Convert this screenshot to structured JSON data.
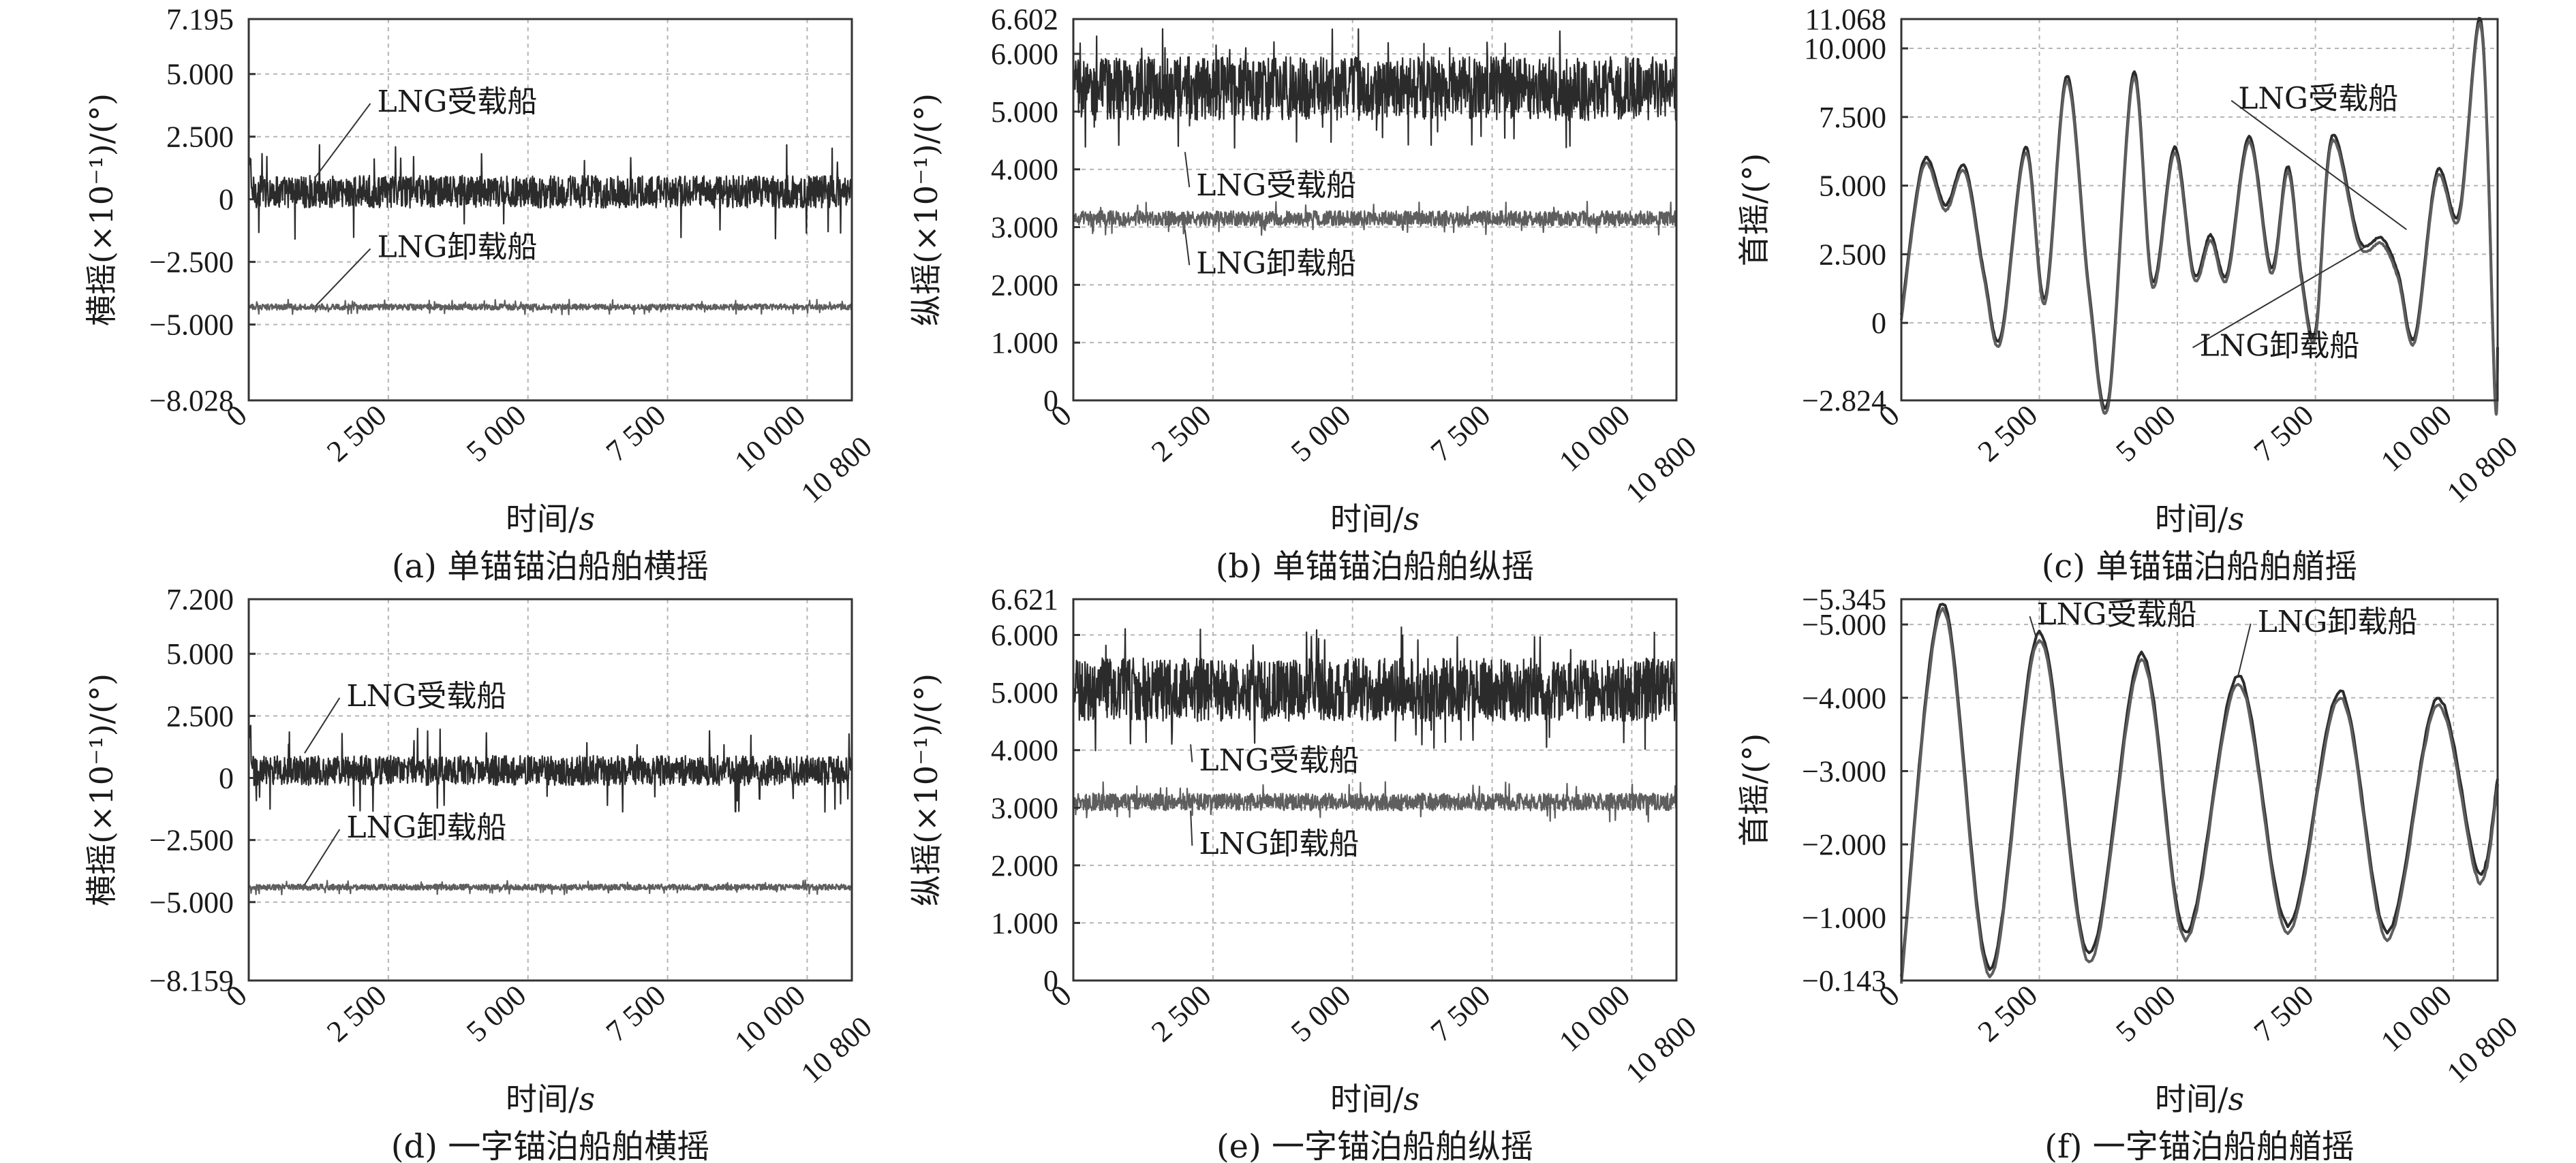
{
  "colors": {
    "upper_series": "#2b2b2b",
    "lower_series": "#5e5e5e",
    "grid": "#b5b5b5",
    "frame": "#333333"
  },
  "chart_data": [
    {
      "id": "a",
      "type": "line",
      "caption": "(a) 单锚锚泊船舶横摇",
      "xlabel": "时间/",
      "xlabel_unit": "s",
      "ylabel": "横摇(×10⁻¹)/(°)",
      "xlim": [
        0,
        10800
      ],
      "ylim": [
        -8.028,
        7.195
      ],
      "grid": true,
      "xticks": [
        0,
        2500,
        5000,
        7500,
        10000,
        10800
      ],
      "xtick_labels": [
        "0",
        "2 500",
        "5 000",
        "7 500",
        "10 000",
        "10 800"
      ],
      "yticks": [
        -8.028,
        -5.0,
        -2.5,
        0,
        2.5,
        5.0,
        7.195
      ],
      "ytick_labels": [
        "-8.028",
        "-5.000",
        "-2.500",
        "0",
        "2.500",
        "5.000",
        "7.195"
      ],
      "series": [
        {
          "name": "LNG受载船",
          "kind": "noise",
          "mean": 0.3,
          "amp": 0.65,
          "spike": 1.9,
          "start": 1.6
        },
        {
          "name": "LNG卸载船",
          "kind": "noise",
          "mean": -4.3,
          "amp": 0.12,
          "spike": 0.3,
          "start": -4.3
        }
      ],
      "annotations": [
        {
          "text": "LNG受载船",
          "x": 2300,
          "y": 3.5,
          "tx": 1200,
          "ty": 0.9
        },
        {
          "text": "LNG卸载船",
          "x": 2300,
          "y": -2.3,
          "tx": 1200,
          "ty": -4.25
        }
      ]
    },
    {
      "id": "b",
      "type": "line",
      "caption": "(b) 单锚锚泊船舶纵摇",
      "xlabel": "时间/",
      "xlabel_unit": "s",
      "ylabel": "纵摇(×10⁻¹)/(°)",
      "xlim": [
        0,
        10800
      ],
      "ylim": [
        0,
        6.602
      ],
      "grid": true,
      "xticks": [
        0,
        2500,
        5000,
        7500,
        10000,
        10800
      ],
      "xtick_labels": [
        "0",
        "2 500",
        "5 000",
        "7 500",
        "10 000",
        "10 800"
      ],
      "yticks": [
        0,
        1.0,
        2.0,
        3.0,
        4.0,
        5.0,
        6.0,
        6.602
      ],
      "ytick_labels": [
        "0",
        "1.000",
        "2.000",
        "3.000",
        "4.000",
        "5.000",
        "6.000",
        "6.602"
      ],
      "series": [
        {
          "name": "LNG受载船",
          "kind": "noise",
          "mean": 5.4,
          "amp": 0.55,
          "spike": 1.05,
          "start": 5.4
        },
        {
          "name": "LNG卸载船",
          "kind": "noise",
          "mean": 3.15,
          "amp": 0.13,
          "spike": 0.3,
          "start": 3.15
        }
      ],
      "annotations": [
        {
          "text": "LNG受载船",
          "x": 2200,
          "y": 3.55,
          "tx": 2000,
          "ty": 4.3
        },
        {
          "text": "LNG卸载船",
          "x": 2200,
          "y": 2.2,
          "tx": 2000,
          "ty": 2.95
        }
      ]
    },
    {
      "id": "c",
      "type": "line",
      "caption": "(c) 单锚锚泊船舶艏摇",
      "xlabel": "时间/",
      "xlabel_unit": "s",
      "ylabel": "首摇/(°)",
      "xlim": [
        0,
        10800
      ],
      "ylim": [
        -2.824,
        11.068
      ],
      "grid": true,
      "xticks": [
        0,
        2500,
        5000,
        7500,
        10000,
        10800
      ],
      "xtick_labels": [
        "0",
        "2 500",
        "5 000",
        "7 500",
        "10 000",
        "10 800"
      ],
      "yticks": [
        -2.824,
        0,
        2.5,
        5.0,
        7.5,
        10.0,
        11.068
      ],
      "ytick_labels": [
        "-2.824",
        "0",
        "2.500",
        "5.000",
        "7.500",
        "10.000",
        "11.068"
      ],
      "series": [
        {
          "name": "LNG受载船",
          "kind": "smooth",
          "offset": 0.0,
          "x": [
            0,
            400,
            800,
            1150,
            1500,
            1800,
            2250,
            2600,
            3000,
            3400,
            3750,
            4200,
            4550,
            4950,
            5300,
            5600,
            5900,
            6300,
            6700,
            7000,
            7250,
            7500,
            7800,
            8300,
            8700,
            9000,
            9300,
            9700,
            10100,
            10500,
            10750,
            10800
          ],
          "y": [
            0.3,
            5.9,
            4.3,
            5.7,
            1.8,
            -0.5,
            6.4,
            0.9,
            9.0,
            1.2,
            -2.8,
            9.1,
            1.5,
            6.4,
            1.8,
            3.2,
            1.8,
            6.8,
            2.0,
            5.7,
            1.7,
            -0.3,
            6.8,
            3.0,
            3.1,
            1.8,
            -0.5,
            5.5,
            4.0,
            11.0,
            -2.5,
            -0.9
          ]
        },
        {
          "name": "LNG卸载船",
          "kind": "smooth",
          "offset": -0.2,
          "x": [
            0,
            400,
            800,
            1150,
            1500,
            1800,
            2250,
            2600,
            3000,
            3400,
            3750,
            4200,
            4550,
            4950,
            5300,
            5600,
            5900,
            6300,
            6700,
            7000,
            7250,
            7500,
            7800,
            8300,
            8700,
            9000,
            9300,
            9700,
            10100,
            10500,
            10750,
            10800
          ],
          "y": [
            0.3,
            5.9,
            4.3,
            5.7,
            1.8,
            -0.5,
            6.4,
            0.9,
            9.0,
            1.2,
            -2.8,
            9.1,
            1.5,
            6.4,
            1.8,
            3.2,
            1.8,
            6.8,
            2.0,
            5.7,
            1.7,
            -0.3,
            6.8,
            3.0,
            3.1,
            1.8,
            -0.5,
            5.5,
            4.0,
            11.0,
            -2.5,
            -0.9
          ]
        }
      ],
      "annotations": [
        {
          "text": "LNG受载船",
          "x": 6100,
          "y": 7.8,
          "tx": 9150,
          "ty": 3.4
        },
        {
          "text": "LNG卸载船",
          "x": 5400,
          "y": -1.2,
          "tx": 8600,
          "ty": 3.0
        }
      ]
    },
    {
      "id": "d",
      "type": "line",
      "caption": "(d) 一字锚泊船舶横摇",
      "xlabel": "时间/",
      "xlabel_unit": "s",
      "ylabel": "横摇(×10⁻¹)/(°)",
      "xlim": [
        0,
        10800
      ],
      "ylim": [
        -8.159,
        7.2
      ],
      "grid": true,
      "xticks": [
        0,
        2500,
        5000,
        7500,
        10000,
        10800
      ],
      "xtick_labels": [
        "0",
        "2 500",
        "5 000",
        "7 500",
        "10 000",
        "10 800"
      ],
      "yticks": [
        -8.159,
        -5.0,
        -2.5,
        0,
        2.5,
        5.0,
        7.2
      ],
      "ytick_labels": [
        "-8.159",
        "-5.000",
        "-2.500",
        "0",
        "2.500",
        "5.000",
        "7.200"
      ],
      "series": [
        {
          "name": "LNG受载船",
          "kind": "noise",
          "mean": 0.3,
          "amp": 0.6,
          "spike": 1.7,
          "start": 1.8
        },
        {
          "name": "LNG卸载船",
          "kind": "noise",
          "mean": -4.4,
          "amp": 0.12,
          "spike": 0.3,
          "start": -4.4
        }
      ],
      "annotations": [
        {
          "text": "LNG受载船",
          "x": 1750,
          "y": 2.9,
          "tx": 1000,
          "ty": 1.0
        },
        {
          "text": "LNG卸载船",
          "x": 1750,
          "y": -2.4,
          "tx": 1000,
          "ty": -4.3
        }
      ]
    },
    {
      "id": "e",
      "type": "line",
      "caption": "(e) 一字锚泊船舶纵摇",
      "xlabel": "时间/",
      "xlabel_unit": "s",
      "ylabel": "纵摇(×10⁻¹)/(°)",
      "xlim": [
        0,
        10800
      ],
      "ylim": [
        0,
        6.621
      ],
      "grid": true,
      "xticks": [
        0,
        2500,
        5000,
        7500,
        10000,
        10800
      ],
      "xtick_labels": [
        "0",
        "2 500",
        "5 000",
        "7 500",
        "10 000",
        "10 800"
      ],
      "yticks": [
        0,
        1.0,
        2.0,
        3.0,
        4.0,
        5.0,
        6.0,
        6.621
      ],
      "ytick_labels": [
        "0",
        "1.000",
        "2.000",
        "3.000",
        "4.000",
        "5.000",
        "6.000",
        "6.621"
      ],
      "series": [
        {
          "name": "LNG受载船",
          "kind": "noise",
          "mean": 5.05,
          "amp": 0.55,
          "spike": 1.1,
          "start": 5.0
        },
        {
          "name": "LNG卸载船",
          "kind": "noise",
          "mean": 3.1,
          "amp": 0.15,
          "spike": 0.35,
          "start": 3.1
        }
      ],
      "annotations": [
        {
          "text": "LNG受载船",
          "x": 2250,
          "y": 3.65,
          "tx": 2100,
          "ty": 4.1
        },
        {
          "text": "LNG卸载船",
          "x": 2250,
          "y": 2.2,
          "tx": 2100,
          "ty": 2.95
        }
      ]
    },
    {
      "id": "f",
      "type": "line",
      "caption": "(f) 一字锚泊船舶艏摇",
      "xlabel": "时间/",
      "xlabel_unit": "s",
      "ylabel": "首摇/(°)",
      "xlim": [
        0,
        10800
      ],
      "ylim": [
        -0.143,
        -5.345
      ],
      "grid": true,
      "xticks": [
        0,
        2500,
        5000,
        7500,
        10000,
        10800
      ],
      "xtick_labels": [
        "0",
        "2 500",
        "5 000",
        "7 500",
        "10 000",
        "10 800"
      ],
      "yticks": [
        -0.143,
        -1.0,
        -2.0,
        -3.0,
        -4.0,
        -5.0,
        -5.345
      ],
      "ytick_labels": [
        "-0.143",
        "-1.000",
        "-2.000",
        "-3.000",
        "-4.000",
        "-5.000",
        "-5.345"
      ],
      "series": [
        {
          "name": "LNG受载船",
          "kind": "smooth",
          "offset": 0.0,
          "x": [
            0,
            750,
            1600,
            2500,
            3400,
            4350,
            5150,
            6100,
            7000,
            7950,
            8800,
            9700,
            10450,
            10800
          ],
          "y": [
            -0.2,
            -5.3,
            -0.3,
            -4.9,
            -0.5,
            -4.6,
            -0.8,
            -4.3,
            -0.9,
            -4.1,
            -0.8,
            -4.0,
            -1.6,
            -2.9
          ]
        },
        {
          "name": "LNG卸载船",
          "kind": "smooth",
          "offset": 0.1,
          "x": [
            0,
            750,
            1600,
            2500,
            3400,
            4350,
            5150,
            6100,
            7000,
            7950,
            8800,
            9700,
            10450,
            10800
          ],
          "y": [
            -0.2,
            -5.3,
            -0.3,
            -4.9,
            -0.5,
            -4.6,
            -0.8,
            -4.3,
            -0.9,
            -4.1,
            -0.8,
            -4.0,
            -1.6,
            -2.9
          ]
        }
      ],
      "annotations": [
        {
          "text": "LNG受载船",
          "x": 2450,
          "y": -5.0,
          "tx": 2450,
          "ty": -4.8
        },
        {
          "text": "LNG卸载船",
          "x": 6450,
          "y": -4.9,
          "tx": 6100,
          "ty": -4.3
        }
      ]
    }
  ]
}
